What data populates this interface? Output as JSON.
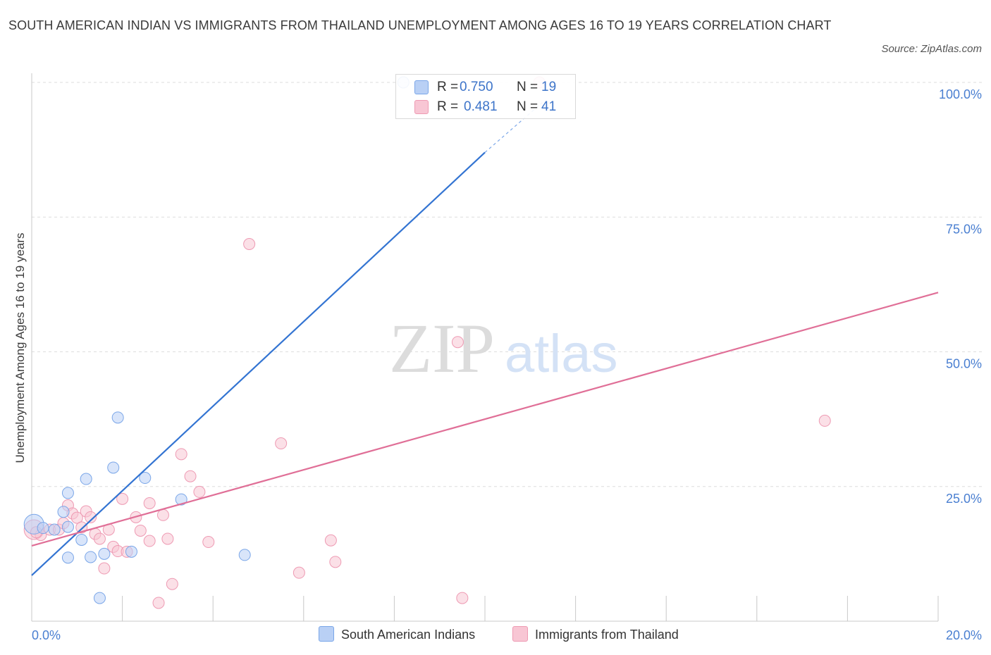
{
  "title": "SOUTH AMERICAN INDIAN VS IMMIGRANTS FROM THAILAND UNEMPLOYMENT AMONG AGES 16 TO 19 YEARS CORRELATION CHART",
  "source": "Source: ZipAtlas.com",
  "watermark": {
    "zip": "ZIP",
    "atlas": "atlas"
  },
  "legend": {
    "r_label": "R =",
    "n_label": "N =",
    "series1": {
      "r": "0.750",
      "n": "19"
    },
    "series2": {
      "r": "0.481",
      "n": "41"
    }
  },
  "bottom_legend": {
    "series1": "South American Indians",
    "series2": "Immigrants from Thailand"
  },
  "colors": {
    "blue_fill": "#b9d0f5",
    "blue_stroke": "#7aa6e8",
    "blue_line": "#3374d2",
    "pink_fill": "#f8c6d4",
    "pink_stroke": "#ee9ab3",
    "pink_line": "#e06f97",
    "tick": "#4a7fd1",
    "grid": "#dedede"
  },
  "chart_data": {
    "type": "scatter",
    "xlabel": "",
    "ylabel": "Unemployment Among Ages 16 to 19 years",
    "xlim": [
      0,
      20
    ],
    "ylim": [
      0,
      100
    ],
    "x_tick_labels": [
      "0.0%",
      "20.0%"
    ],
    "y_ticks": [
      25,
      50,
      75,
      100
    ],
    "y_tick_labels": [
      "25.0%",
      "50.0%",
      "75.0%",
      "100.0%"
    ],
    "grid": true,
    "series": [
      {
        "name": "South American Indians",
        "R": 0.75,
        "N": 19,
        "points": [
          [
            0.05,
            18.0,
            14
          ],
          [
            0.25,
            17.3,
            8
          ],
          [
            0.5,
            17.0,
            8
          ],
          [
            0.7,
            20.3,
            8
          ],
          [
            0.8,
            17.5,
            8
          ],
          [
            0.8,
            23.8,
            8
          ],
          [
            1.1,
            15.1,
            8
          ],
          [
            1.2,
            26.4,
            8
          ],
          [
            0.8,
            11.8,
            8
          ],
          [
            1.3,
            11.9,
            8
          ],
          [
            1.6,
            12.5,
            8
          ],
          [
            1.8,
            28.5,
            8
          ],
          [
            1.9,
            37.8,
            8
          ],
          [
            2.2,
            12.9,
            8
          ],
          [
            2.5,
            26.6,
            8
          ],
          [
            3.3,
            22.6,
            8
          ],
          [
            4.7,
            12.3,
            8
          ],
          [
            1.5,
            4.3,
            8
          ],
          [
            8.2,
            100.0,
            8
          ]
        ],
        "trend": {
          "x": [
            0,
            10.0
          ],
          "y": [
            8.5,
            87.0
          ],
          "dashed_to": [
            11.3,
            96.5
          ]
        }
      },
      {
        "name": "Immigrants from Thailand",
        "R": 0.481,
        "N": 41,
        "points": [
          [
            0.05,
            17.0,
            14
          ],
          [
            0.2,
            16.0,
            8
          ],
          [
            0.4,
            17.0,
            8
          ],
          [
            0.6,
            17.0,
            8
          ],
          [
            0.7,
            18.2,
            8
          ],
          [
            0.8,
            21.5,
            8
          ],
          [
            0.9,
            20.0,
            8
          ],
          [
            1.0,
            19.2,
            8
          ],
          [
            1.1,
            17.4,
            8
          ],
          [
            1.2,
            20.4,
            8
          ],
          [
            1.3,
            19.3,
            8
          ],
          [
            1.4,
            16.2,
            8
          ],
          [
            1.5,
            15.3,
            8
          ],
          [
            1.6,
            9.8,
            8
          ],
          [
            1.7,
            17.0,
            8
          ],
          [
            1.8,
            13.8,
            8
          ],
          [
            1.9,
            13.0,
            8
          ],
          [
            2.0,
            22.7,
            8
          ],
          [
            2.1,
            12.9,
            8
          ],
          [
            2.3,
            19.3,
            8
          ],
          [
            2.4,
            16.8,
            8
          ],
          [
            2.6,
            21.9,
            8
          ],
          [
            2.6,
            14.9,
            8
          ],
          [
            2.9,
            19.7,
            8
          ],
          [
            3.0,
            15.3,
            8
          ],
          [
            3.1,
            6.9,
            8
          ],
          [
            2.8,
            3.4,
            8
          ],
          [
            3.3,
            31.0,
            8
          ],
          [
            3.5,
            26.9,
            8
          ],
          [
            3.7,
            24.0,
            8
          ],
          [
            3.9,
            14.7,
            8
          ],
          [
            4.8,
            70.0,
            8
          ],
          [
            5.5,
            33.0,
            8
          ],
          [
            5.9,
            9.0,
            8
          ],
          [
            6.6,
            15.0,
            8
          ],
          [
            6.7,
            11.0,
            8
          ],
          [
            9.4,
            51.8,
            8
          ],
          [
            9.5,
            4.3,
            8
          ],
          [
            11.2,
            100.0,
            8
          ],
          [
            17.5,
            37.2,
            8
          ],
          [
            0.1,
            16.5,
            8
          ]
        ],
        "trend": {
          "x": [
            0,
            20
          ],
          "y": [
            14.0,
            61.0
          ]
        }
      }
    ]
  }
}
